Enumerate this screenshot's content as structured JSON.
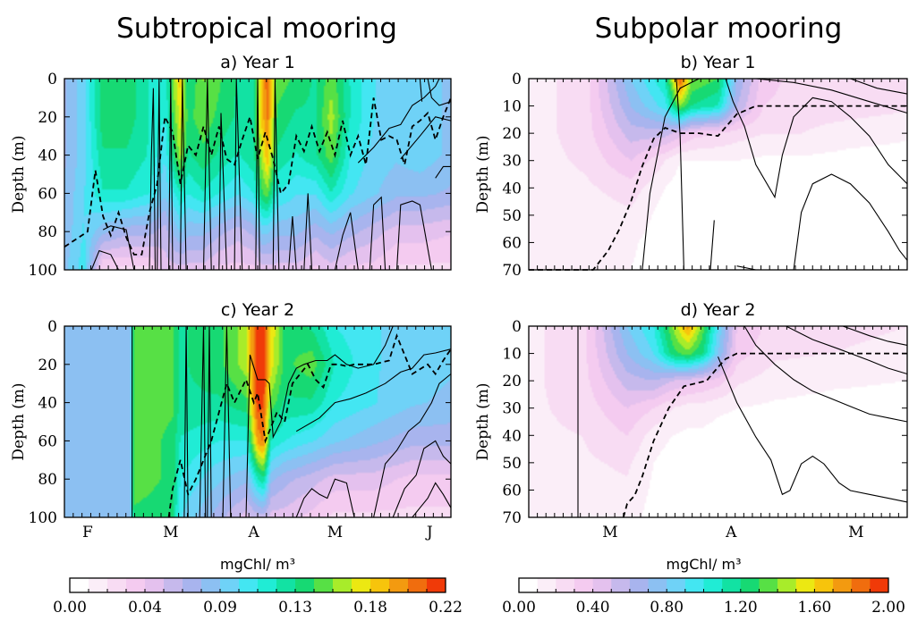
{
  "column_titles": [
    "Subtropical mooring",
    "Subpolar mooring"
  ],
  "chart_data": [
    {
      "id": "a",
      "type": "heatmap",
      "title": "a) Year 1",
      "ylabel": "Depth (m)",
      "yticks": [
        0,
        20,
        40,
        60,
        80,
        100
      ],
      "ylim": [
        100,
        0
      ],
      "xlim": [
        0,
        1
      ],
      "month_labels": [],
      "colorbar": 0,
      "columns": [
        {
          "x": 0.0,
          "p": [
            0.075,
            0.075,
            0.075,
            0.078,
            0.08,
            0.085
          ]
        },
        {
          "x": 0.05,
          "p": [
            0.095,
            0.095,
            0.095,
            0.098,
            0.1,
            0.105
          ]
        },
        {
          "x": 0.1,
          "p": [
            0.14,
            0.14,
            0.13,
            0.12,
            0.08,
            0.03
          ]
        },
        {
          "x": 0.16,
          "p": [
            0.14,
            0.14,
            0.13,
            0.12,
            0.07,
            0.03
          ]
        },
        {
          "x": 0.22,
          "p": [
            0.12,
            0.12,
            0.12,
            0.11,
            0.07,
            0.03
          ]
        },
        {
          "x": 0.26,
          "p": [
            0.11,
            0.11,
            0.1,
            0.09,
            0.06,
            0.05
          ]
        },
        {
          "x": 0.285,
          "p": [
            0.16,
            0.15,
            0.14,
            0.11,
            0.08,
            0.05
          ]
        },
        {
          "x": 0.3,
          "p": [
            0.18,
            0.17,
            0.16,
            0.12,
            0.09,
            0.05
          ]
        },
        {
          "x": 0.32,
          "p": [
            0.13,
            0.14,
            0.13,
            0.11,
            0.08,
            0.05
          ]
        },
        {
          "x": 0.36,
          "p": [
            0.155,
            0.15,
            0.14,
            0.12,
            0.08,
            0.05
          ]
        },
        {
          "x": 0.4,
          "p": [
            0.145,
            0.14,
            0.13,
            0.11,
            0.07,
            0.04
          ]
        },
        {
          "x": 0.45,
          "p": [
            0.13,
            0.13,
            0.12,
            0.1,
            0.06,
            0.04
          ]
        },
        {
          "x": 0.49,
          "p": [
            0.125,
            0.13,
            0.13,
            0.11,
            0.07,
            0.04
          ]
        },
        {
          "x": 0.51,
          "p": [
            0.185,
            0.18,
            0.16,
            0.14,
            0.09,
            0.05
          ]
        },
        {
          "x": 0.525,
          "p": [
            0.205,
            0.2,
            0.185,
            0.15,
            0.09,
            0.05
          ]
        },
        {
          "x": 0.55,
          "p": [
            0.15,
            0.14,
            0.13,
            0.11,
            0.08,
            0.05
          ]
        },
        {
          "x": 0.6,
          "p": [
            0.14,
            0.13,
            0.12,
            0.1,
            0.08,
            0.05
          ]
        },
        {
          "x": 0.65,
          "p": [
            0.13,
            0.13,
            0.13,
            0.1,
            0.07,
            0.04
          ]
        },
        {
          "x": 0.69,
          "p": [
            0.15,
            0.16,
            0.15,
            0.12,
            0.08,
            0.05
          ]
        },
        {
          "x": 0.74,
          "p": [
            0.12,
            0.12,
            0.11,
            0.1,
            0.07,
            0.04
          ]
        },
        {
          "x": 0.8,
          "p": [
            0.1,
            0.1,
            0.095,
            0.09,
            0.06,
            0.04
          ]
        },
        {
          "x": 0.86,
          "p": [
            0.09,
            0.09,
            0.09,
            0.08,
            0.05,
            0.03
          ]
        },
        {
          "x": 0.92,
          "p": [
            0.095,
            0.095,
            0.095,
            0.08,
            0.05,
            0.03
          ]
        },
        {
          "x": 1.0,
          "p": [
            0.085,
            0.085,
            0.085,
            0.075,
            0.045,
            0.03
          ]
        }
      ],
      "mixed_layer": {
        "x": [
          0.0,
          0.06,
          0.08,
          0.1,
          0.12,
          0.14,
          0.16,
          0.18,
          0.2,
          0.22,
          0.24,
          0.26,
          0.28,
          0.3,
          0.32,
          0.34,
          0.36,
          0.38,
          0.4,
          0.42,
          0.44,
          0.46,
          0.48,
          0.5,
          0.52,
          0.54,
          0.56,
          0.58,
          0.6,
          0.62,
          0.64,
          0.66,
          0.68,
          0.7,
          0.72,
          0.74,
          0.76,
          0.78,
          0.8,
          0.82,
          0.84,
          0.86,
          0.88,
          0.9,
          0.92,
          0.94,
          0.96,
          0.98,
          1.0
        ],
        "y": [
          88,
          80,
          48,
          72,
          82,
          70,
          83,
          92,
          92,
          70,
          55,
          20,
          28,
          55,
          35,
          40,
          25,
          40,
          25,
          42,
          45,
          32,
          20,
          42,
          28,
          42,
          60,
          55,
          30,
          38,
          25,
          38,
          28,
          40,
          22,
          40,
          30,
          45,
          10,
          32,
          30,
          32,
          45,
          25,
          22,
          18,
          32,
          20,
          10
        ]
      }
    },
    {
      "id": "b",
      "type": "heatmap",
      "title": "b) Year 1",
      "ylabel": "Depth (m)",
      "yticks": [
        0,
        10,
        20,
        30,
        40,
        50,
        60,
        70
      ],
      "ylim": [
        70,
        0
      ],
      "xlim": [
        0,
        1
      ],
      "month_labels": [],
      "colorbar": 1,
      "columns": [
        {
          "x": 0.0,
          "p": [
            0.15,
            0.15,
            0.15,
            0.15,
            0.15,
            0.15,
            0.15,
            0.15
          ]
        },
        {
          "x": 0.15,
          "p": [
            0.25,
            0.25,
            0.25,
            0.22,
            0.18,
            0.15,
            0.12,
            0.1
          ]
        },
        {
          "x": 0.27,
          "p": [
            0.8,
            0.7,
            0.55,
            0.4,
            0.25,
            0.18,
            0.12,
            0.1
          ]
        },
        {
          "x": 0.36,
          "p": [
            1.1,
            0.95,
            0.55,
            0.2,
            0.1,
            0.05,
            0.03,
            0.02
          ]
        },
        {
          "x": 0.4,
          "p": [
            1.9,
            1.4,
            0.45,
            0.1,
            0.05,
            0.03,
            0.02,
            0.02
          ]
        },
        {
          "x": 0.43,
          "p": [
            1.4,
            1.2,
            0.35,
            0.1,
            0.05,
            0.03,
            0.02,
            0.02
          ]
        },
        {
          "x": 0.5,
          "p": [
            1.3,
            1.1,
            0.3,
            0.1,
            0.05,
            0.03,
            0.02,
            0.02
          ]
        },
        {
          "x": 0.55,
          "p": [
            0.7,
            0.6,
            0.25,
            0.1,
            0.05,
            0.03,
            0.02,
            0.02
          ]
        },
        {
          "x": 0.62,
          "p": [
            0.35,
            0.3,
            0.2,
            0.08,
            0.05,
            0.03,
            0.02,
            0.02
          ]
        },
        {
          "x": 0.72,
          "p": [
            0.25,
            0.25,
            0.2,
            0.08,
            0.04,
            0.03,
            0.02,
            0.02
          ]
        },
        {
          "x": 0.85,
          "p": [
            0.28,
            0.25,
            0.15,
            0.06,
            0.03,
            0.02,
            0.02,
            0.02
          ]
        },
        {
          "x": 1.0,
          "p": [
            0.25,
            0.22,
            0.12,
            0.05,
            0.03,
            0.02,
            0.02,
            0.02
          ]
        }
      ],
      "mixed_layer": {
        "x": [
          0.0,
          0.17,
          0.21,
          0.24,
          0.27,
          0.3,
          0.33,
          0.36,
          0.4,
          0.45,
          0.5,
          0.55,
          0.6,
          0.7,
          0.8,
          0.9,
          1.0
        ],
        "y": [
          70,
          70,
          63,
          55,
          45,
          32,
          22,
          18,
          20,
          20,
          21,
          13,
          10,
          10,
          10,
          10,
          10
        ]
      }
    },
    {
      "id": "c",
      "type": "heatmap",
      "title": "c) Year 2",
      "ylabel": "Depth (m)",
      "yticks": [
        0,
        20,
        40,
        60,
        80,
        100
      ],
      "ylim": [
        100,
        0
      ],
      "xlim": [
        0,
        1
      ],
      "month_labels": [
        {
          "text": "F",
          "x": 0.06
        },
        {
          "text": "M",
          "x": 0.275
        },
        {
          "text": "A",
          "x": 0.49
        },
        {
          "text": "M",
          "x": 0.7
        },
        {
          "text": "J",
          "x": 0.945
        }
      ],
      "colorbar": 0,
      "columns": [
        {
          "x": 0.0,
          "p": [
            0.08,
            0.08,
            0.08,
            0.08,
            0.08,
            0.08
          ]
        },
        {
          "x": 0.17,
          "p": [
            0.085,
            0.085,
            0.085,
            0.085,
            0.085,
            0.085
          ]
        },
        {
          "x": 0.18,
          "p": [
            0.15,
            0.15,
            0.15,
            0.15,
            0.15,
            0.14
          ]
        },
        {
          "x": 0.28,
          "p": [
            0.145,
            0.145,
            0.145,
            0.14,
            0.14,
            0.135
          ]
        },
        {
          "x": 0.3,
          "p": [
            0.13,
            0.13,
            0.13,
            0.12,
            0.11,
            0.1
          ]
        },
        {
          "x": 0.4,
          "p": [
            0.14,
            0.14,
            0.13,
            0.11,
            0.09,
            0.07
          ]
        },
        {
          "x": 0.47,
          "p": [
            0.16,
            0.16,
            0.14,
            0.11,
            0.08,
            0.05
          ]
        },
        {
          "x": 0.5,
          "p": [
            0.22,
            0.22,
            0.215,
            0.19,
            0.12,
            0.06
          ]
        },
        {
          "x": 0.515,
          "p": [
            0.22,
            0.22,
            0.21,
            0.2,
            0.13,
            0.06
          ]
        },
        {
          "x": 0.535,
          "p": [
            0.175,
            0.17,
            0.15,
            0.12,
            0.08,
            0.05
          ]
        },
        {
          "x": 0.57,
          "p": [
            0.14,
            0.14,
            0.13,
            0.11,
            0.07,
            0.05
          ]
        },
        {
          "x": 0.64,
          "p": [
            0.13,
            0.15,
            0.13,
            0.1,
            0.06,
            0.04
          ]
        },
        {
          "x": 0.7,
          "p": [
            0.11,
            0.12,
            0.11,
            0.09,
            0.05,
            0.03
          ]
        },
        {
          "x": 0.8,
          "p": [
            0.1,
            0.1,
            0.1,
            0.08,
            0.05,
            0.03
          ]
        },
        {
          "x": 0.9,
          "p": [
            0.095,
            0.095,
            0.09,
            0.07,
            0.04,
            0.03
          ]
        },
        {
          "x": 1.0,
          "p": [
            0.09,
            0.09,
            0.085,
            0.07,
            0.04,
            0.03
          ]
        }
      ],
      "mixed_layer": {
        "x": [
          0.27,
          0.28,
          0.3,
          0.32,
          0.34,
          0.38,
          0.42,
          0.44,
          0.47,
          0.49,
          0.5,
          0.52,
          0.53,
          0.55,
          0.57,
          0.59,
          0.61,
          0.63,
          0.65,
          0.67,
          0.69,
          0.71,
          0.73,
          0.75,
          0.8,
          0.84,
          0.86,
          0.88,
          0.9,
          0.94,
          0.96,
          0.98,
          1.0
        ],
        "y": [
          100,
          85,
          70,
          88,
          80,
          60,
          30,
          40,
          28,
          40,
          35,
          60,
          55,
          45,
          50,
          30,
          25,
          20,
          28,
          32,
          20,
          20,
          21,
          20,
          20,
          18,
          5,
          15,
          25,
          20,
          25,
          18,
          12
        ]
      }
    },
    {
      "id": "d",
      "type": "heatmap",
      "title": "d) Year 2",
      "ylabel": "Depth (m)",
      "yticks": [
        0,
        10,
        20,
        30,
        40,
        50,
        60,
        70
      ],
      "ylim": [
        70,
        0
      ],
      "xlim": [
        0,
        1
      ],
      "month_labels": [
        {
          "text": "M",
          "x": 0.215
        },
        {
          "text": "A",
          "x": 0.535
        },
        {
          "text": "M",
          "x": 0.865
        }
      ],
      "colorbar": 1,
      "columns": [
        {
          "x": 0.0,
          "p": [
            0.18,
            0.18,
            0.18,
            0.18,
            0.18,
            0.18,
            0.18,
            0.18
          ]
        },
        {
          "x": 0.14,
          "p": [
            0.25,
            0.25,
            0.25,
            0.23,
            0.2,
            0.18,
            0.16,
            0.15
          ]
        },
        {
          "x": 0.26,
          "p": [
            0.8,
            0.7,
            0.55,
            0.4,
            0.3,
            0.22,
            0.18,
            0.15
          ]
        },
        {
          "x": 0.33,
          "p": [
            1.0,
            0.9,
            0.6,
            0.3,
            0.15,
            0.1,
            0.08,
            0.06
          ]
        },
        {
          "x": 0.38,
          "p": [
            1.4,
            1.25,
            0.5,
            0.2,
            0.1,
            0.05,
            0.04,
            0.03
          ]
        },
        {
          "x": 0.42,
          "p": [
            1.75,
            1.35,
            0.45,
            0.15,
            0.08,
            0.04,
            0.03,
            0.03
          ]
        },
        {
          "x": 0.46,
          "p": [
            1.35,
            1.2,
            0.4,
            0.15,
            0.08,
            0.04,
            0.03,
            0.03
          ]
        },
        {
          "x": 0.5,
          "p": [
            0.9,
            0.8,
            0.35,
            0.12,
            0.06,
            0.03,
            0.03,
            0.03
          ]
        },
        {
          "x": 0.55,
          "p": [
            0.4,
            0.35,
            0.22,
            0.1,
            0.05,
            0.03,
            0.03,
            0.03
          ]
        },
        {
          "x": 0.65,
          "p": [
            0.25,
            0.22,
            0.15,
            0.08,
            0.04,
            0.03,
            0.03,
            0.03
          ]
        },
        {
          "x": 0.8,
          "p": [
            0.22,
            0.2,
            0.12,
            0.06,
            0.03,
            0.02,
            0.02,
            0.02
          ]
        },
        {
          "x": 1.0,
          "p": [
            0.2,
            0.18,
            0.1,
            0.05,
            0.03,
            0.02,
            0.02,
            0.02
          ]
        }
      ],
      "mixed_layer": {
        "x": [
          0.25,
          0.26,
          0.28,
          0.3,
          0.33,
          0.37,
          0.41,
          0.44,
          0.47,
          0.5,
          0.52,
          0.55,
          0.6,
          0.7,
          0.8,
          0.9,
          1.0
        ],
        "y": [
          70,
          65,
          62,
          55,
          42,
          30,
          22,
          21,
          20,
          15,
          12,
          10,
          10,
          10,
          10,
          10,
          10
        ]
      }
    }
  ],
  "colorbars": [
    {
      "label": "mgChl/ m³",
      "min": 0.0,
      "max": 0.22,
      "tick_labels": [
        "0.00",
        "0.04",
        "0.09",
        "0.13",
        "0.18",
        "0.22"
      ],
      "colors": [
        "#ffffff",
        "#fbeef8",
        "#f8dcf3",
        "#f4cbf0",
        "#e4c1ee",
        "#c6b9ec",
        "#a8b4ee",
        "#8cc0f2",
        "#6fd2f7",
        "#43e6f2",
        "#20ecd5",
        "#12e2a3",
        "#17d973",
        "#57e045",
        "#a8ec2a",
        "#ece812",
        "#f7c40c",
        "#f39a10",
        "#f06d0e",
        "#f03a08"
      ]
    },
    {
      "label": "mgChl/ m³",
      "min": 0.0,
      "max": 2.0,
      "tick_labels": [
        "0.00",
        "0.40",
        "0.80",
        "1.20",
        "1.60",
        "2.00"
      ],
      "colors": [
        "#ffffff",
        "#fbeef8",
        "#f8dcf3",
        "#f4cbf0",
        "#e4c1ee",
        "#c6b9ec",
        "#a8b4ee",
        "#8cc0f2",
        "#6fd2f7",
        "#43e6f2",
        "#20ecd5",
        "#12e2a3",
        "#17d973",
        "#57e045",
        "#a8ec2a",
        "#ece812",
        "#f7c40c",
        "#f39a10",
        "#f06d0e",
        "#f03a08"
      ]
    }
  ]
}
